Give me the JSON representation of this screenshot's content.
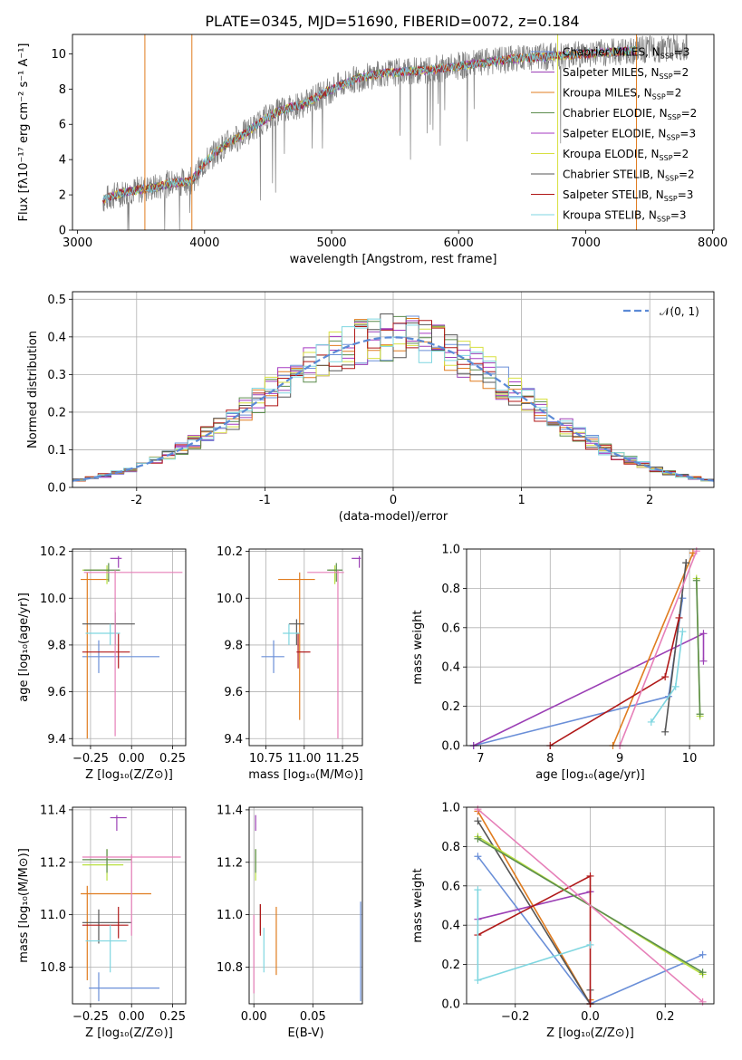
{
  "figure": {
    "title": "PLATE=0345, MJD=51690, FIBERID=0072, z=0.184",
    "colors": {
      "Chabrier MILES": "#6a8fd8",
      "Salpeter MILES": "#9b3fb5",
      "Kroupa MILES": "#e07c1f",
      "Chabrier ELODIE": "#5c8c4d",
      "Salpeter ELODIE": "#a63ac2",
      "Kroupa ELODIE": "#d8e040",
      "Chabrier STELIB": "#555555",
      "Salpeter STELIB": "#b01818",
      "Kroupa STELIB": "#7fd6e0",
      "data": "#7f7f7f",
      "pink": "#e67fb8",
      "lime": "#b8e040",
      "gaussian": "#5b8ad6"
    }
  },
  "chart_data": [
    {
      "id": "spectrum",
      "type": "line",
      "xlabel": "wavelength [Angstrom, rest frame]",
      "ylabel": "Flux [fλ10⁻¹⁷ erg cm⁻² s⁻¹ A⁻¹]",
      "xlim": [
        2960,
        8010
      ],
      "ylim": [
        0,
        11.1
      ],
      "xticks": [
        3000,
        4000,
        5000,
        6000,
        7000,
        8000
      ],
      "yticks": [
        0,
        2,
        4,
        6,
        8,
        10
      ],
      "grid": false,
      "legend_position": "right",
      "legend": [
        {
          "label": "Chabrier MILES",
          "nssp": "3",
          "color": "#6a8fd8"
        },
        {
          "label": "Salpeter MILES",
          "nssp": "2",
          "color": "#9b3fb5"
        },
        {
          "label": "Kroupa MILES",
          "nssp": "2",
          "color": "#e07c1f"
        },
        {
          "label": "Chabrier ELODIE",
          "nssp": "2",
          "color": "#5c8c4d"
        },
        {
          "label": "Salpeter ELODIE",
          "nssp": "3",
          "color": "#a63ac2"
        },
        {
          "label": "Kroupa ELODIE",
          "nssp": "2",
          "color": "#d8e040"
        },
        {
          "label": "Chabrier STELIB",
          "nssp": "2",
          "color": "#555555"
        },
        {
          "label": "Salpeter STELIB",
          "nssp": "3",
          "color": "#b01818"
        },
        {
          "label": "Kroupa STELIB",
          "nssp": "3",
          "color": "#7fd6e0"
        }
      ],
      "continuum": {
        "x": [
          3200,
          3300,
          3400,
          3500,
          3600,
          3700,
          3800,
          3900,
          4000,
          4100,
          4200,
          4300,
          4400,
          4500,
          4600,
          4700,
          4800,
          4900,
          5000,
          5200,
          5400,
          5600,
          5800,
          6000,
          6200,
          6400,
          6600,
          6800,
          7000,
          7200,
          7400,
          7600,
          7800
        ],
        "y": [
          1.7,
          2.0,
          2.2,
          2.3,
          2.4,
          2.6,
          2.7,
          2.8,
          3.8,
          4.5,
          5.0,
          5.4,
          5.9,
          6.4,
          6.8,
          7.0,
          7.2,
          7.6,
          8.0,
          8.6,
          8.9,
          9.0,
          9.1,
          9.3,
          9.5,
          9.7,
          9.8,
          9.9,
          10.0,
          10.1,
          10.2,
          10.3,
          10.4
        ]
      },
      "model_xmax": 7400,
      "flagged_lines": [
        {
          "x": 3530,
          "color": "#e07c1f"
        },
        {
          "x": 3900,
          "color": "#e07c1f"
        },
        {
          "x": 6780,
          "color": "#d8e040"
        },
        {
          "x": 7400,
          "color": "#e07c1f"
        }
      ]
    },
    {
      "id": "residuals",
      "type": "line",
      "xlabel": "(data-model)/error",
      "ylabel": "Normed distribution",
      "xlim": [
        -2.5,
        2.5
      ],
      "ylim": [
        0,
        0.52
      ],
      "xticks": [
        -2,
        -1,
        0,
        1,
        2
      ],
      "yticks": [
        0.0,
        0.1,
        0.2,
        0.3,
        0.4,
        0.5
      ],
      "grid": true,
      "legend_position": "top-right",
      "gaussian_label": "𝒩(0, 1)",
      "bin_width": 0.1
    },
    {
      "id": "age_vs_Z",
      "type": "scatter",
      "xlabel": "Z [log₁₀(Z/Z⊙)]",
      "ylabel": "age  [log₁₀(age/yr)]",
      "xlim": [
        -0.36,
        0.33
      ],
      "ylim": [
        9.37,
        10.21
      ],
      "xticks": [
        -0.25,
        0.0,
        0.25
      ],
      "xtick_labels": [
        "−0.25",
        "0.00",
        "0.25"
      ],
      "yticks": [
        9.4,
        9.6,
        9.8,
        10.0,
        10.2
      ],
      "ytick_labels": [
        "9.4",
        "9.6",
        "9.8",
        "10.0",
        "10.2"
      ],
      "grid": true,
      "points": [
        {
          "x": -0.2,
          "xerr": [
            0.1,
            0.37
          ],
          "y": 9.75,
          "yerr": [
            0.07,
            0.07
          ],
          "color": "#6a8fd8"
        },
        {
          "x": -0.27,
          "xerr": [
            0.04,
            0.13
          ],
          "y": 10.08,
          "yerr": [
            0.68,
            0.03
          ],
          "color": "#e07c1f"
        },
        {
          "x": -0.1,
          "xerr": [
            0.2,
            0.12
          ],
          "y": 9.89,
          "yerr": [
            0.09,
            0.05
          ],
          "color": "#555555"
        },
        {
          "x": -0.08,
          "xerr": [
            0.22,
            0.07
          ],
          "y": 9.77,
          "yerr": [
            0.07,
            0.08
          ],
          "color": "#b01818"
        },
        {
          "x": -0.13,
          "xerr": [
            0.15,
            0.06
          ],
          "y": 9.85,
          "yerr": [
            0.05,
            0.04
          ],
          "color": "#7fd6e0"
        },
        {
          "x": -0.15,
          "xerr": [
            0.15,
            0.01
          ],
          "y": 10.12,
          "yerr": [
            0.06,
            0.02
          ],
          "color": "#b8e040"
        },
        {
          "x": -0.14,
          "xerr": [
            0.15,
            0.07
          ],
          "y": 10.12,
          "yerr": [
            0.05,
            0.03
          ],
          "color": "#5c8c4d"
        },
        {
          "x": -0.08,
          "xerr": [
            0.05,
            0.02
          ],
          "y": 10.17,
          "yerr": [
            0.04,
            0.01
          ],
          "color": "#9b3fb5"
        },
        {
          "x": -0.1,
          "xerr": [
            0.19,
            0.41
          ],
          "y": 10.11,
          "yerr": [
            0.7,
            0.01
          ],
          "color": "#e67fb8"
        }
      ]
    },
    {
      "id": "age_vs_mass",
      "type": "scatter",
      "xlabel": "mass [log₁₀(M/M⊙)]",
      "ylabel": "",
      "xlim": [
        10.64,
        11.38
      ],
      "ylim": [
        9.37,
        10.21
      ],
      "xticks": [
        10.75,
        11.0,
        11.25
      ],
      "xtick_labels": [
        "10.75",
        "11.00",
        "11.25"
      ],
      "yticks": [
        9.4,
        9.6,
        9.8,
        10.0,
        10.2
      ],
      "ytick_labels": [
        "9.4",
        "9.6",
        "9.8",
        "10.0",
        "10.2"
      ],
      "grid": true,
      "points": [
        {
          "x": 10.8,
          "xerr": [
            0.08,
            0.07
          ],
          "y": 9.75,
          "yerr": [
            0.07,
            0.07
          ],
          "color": "#6a8fd8"
        },
        {
          "x": 10.97,
          "xerr": [
            0.14,
            0.1
          ],
          "y": 10.08,
          "yerr": [
            0.6,
            0.03
          ],
          "color": "#e07c1f"
        },
        {
          "x": 10.95,
          "xerr": [
            0.05,
            0.05
          ],
          "y": 9.89,
          "yerr": [
            0.09,
            0.02
          ],
          "color": "#555555"
        },
        {
          "x": 10.96,
          "xerr": [
            0.01,
            0.08
          ],
          "y": 9.77,
          "yerr": [
            0.07,
            0.08
          ],
          "color": "#b01818"
        },
        {
          "x": 10.9,
          "xerr": [
            0.04,
            0.07
          ],
          "y": 9.85,
          "yerr": [
            0.05,
            0.04
          ],
          "color": "#7fd6e0"
        },
        {
          "x": 11.2,
          "xerr": [
            0.04,
            0.01
          ],
          "y": 10.12,
          "yerr": [
            0.06,
            0.02
          ],
          "color": "#b8e040"
        },
        {
          "x": 11.21,
          "xerr": [
            0.06,
            0.04
          ],
          "y": 10.12,
          "yerr": [
            0.05,
            0.03
          ],
          "color": "#5c8c4d"
        },
        {
          "x": 11.36,
          "xerr": [
            0.05,
            0.01
          ],
          "y": 10.17,
          "yerr": [
            0.04,
            0.01
          ],
          "color": "#9b3fb5"
        },
        {
          "x": 11.22,
          "xerr": [
            0.2,
            0.04
          ],
          "y": 10.11,
          "yerr": [
            0.71,
            0.01
          ],
          "color": "#e67fb8"
        }
      ]
    },
    {
      "id": "mass_weight_vs_age",
      "type": "line",
      "xlabel": "age  [log₁₀(age/yr)]",
      "ylabel": "mass weight",
      "xlim": [
        6.8,
        10.35
      ],
      "ylim": [
        0,
        1
      ],
      "xticks": [
        7,
        8,
        9,
        10
      ],
      "yticks": [
        0.0,
        0.2,
        0.4,
        0.6,
        0.8,
        1.0
      ],
      "ytick_labels": [
        "0.0",
        "0.2",
        "0.4",
        "0.6",
        "0.8",
        "1.0"
      ],
      "grid": true,
      "series": [
        {
          "color": "#6a8fd8",
          "x": [
            6.9,
            9.7,
            9.9
          ],
          "y": [
            0.0,
            0.25,
            0.75
          ]
        },
        {
          "color": "#9b3fb5",
          "x": [
            6.9,
            10.2,
            10.2
          ],
          "y": [
            0.0,
            0.57,
            0.43
          ]
        },
        {
          "color": "#e07c1f",
          "x": [
            8.9,
            10.05,
            10.05
          ],
          "y": [
            0.0,
            0.98,
            0.98
          ]
        },
        {
          "color": "#555555",
          "x": [
            9.65,
            9.95,
            9.95
          ],
          "y": [
            0.07,
            0.93,
            0.93
          ]
        },
        {
          "color": "#b01818",
          "x": [
            8.0,
            9.65,
            9.85
          ],
          "y": [
            0.0,
            0.35,
            0.65
          ]
        },
        {
          "color": "#7fd6e0",
          "x": [
            9.45,
            9.8,
            9.9
          ],
          "y": [
            0.12,
            0.3,
            0.58
          ]
        },
        {
          "color": "#b8e040",
          "x": [
            10.1,
            10.15
          ],
          "y": [
            0.85,
            0.15
          ]
        },
        {
          "color": "#5c8c4d",
          "x": [
            10.1,
            10.15
          ],
          "y": [
            0.84,
            0.16
          ]
        },
        {
          "color": "#e67fb8",
          "x": [
            9.0,
            10.1
          ],
          "y": [
            0.0,
            0.99
          ]
        }
      ]
    },
    {
      "id": "mass_vs_Z",
      "type": "scatter",
      "xlabel": "Z [log₁₀(Z/Z⊙)]",
      "ylabel": "mass [log₁₀(M/M⊙)]",
      "xlim": [
        -0.36,
        0.33
      ],
      "ylim": [
        10.66,
        11.41
      ],
      "xticks": [
        -0.25,
        0.0,
        0.25
      ],
      "xtick_labels": [
        "−0.25",
        "0.00",
        "0.25"
      ],
      "yticks": [
        10.8,
        11.0,
        11.2,
        11.4
      ],
      "ytick_labels": [
        "10.8",
        "11.0",
        "11.2",
        "11.4"
      ],
      "grid": true,
      "points": [
        {
          "x": -0.2,
          "xerr": [
            0.06,
            0.37
          ],
          "y": 10.72,
          "yerr": [
            0.05,
            0.06
          ],
          "color": "#6a8fd8"
        },
        {
          "x": -0.27,
          "xerr": [
            0.04,
            0.39
          ],
          "y": 11.08,
          "yerr": [
            0.33,
            0.03
          ],
          "color": "#e07c1f"
        },
        {
          "x": -0.2,
          "xerr": [
            0.1,
            0.2
          ],
          "y": 10.97,
          "yerr": [
            0.08,
            0.05
          ],
          "color": "#555555"
        },
        {
          "x": -0.08,
          "xerr": [
            0.22,
            0.06
          ],
          "y": 10.96,
          "yerr": [
            0.05,
            0.07
          ],
          "color": "#b01818"
        },
        {
          "x": -0.13,
          "xerr": [
            0.15,
            0.1
          ],
          "y": 10.9,
          "yerr": [
            0.12,
            0.06
          ],
          "color": "#7fd6e0"
        },
        {
          "x": -0.15,
          "xerr": [
            0.15,
            0.1
          ],
          "y": 11.19,
          "yerr": [
            0.06,
            0.06
          ],
          "color": "#b8e040"
        },
        {
          "x": -0.15,
          "xerr": [
            0.15,
            0.15
          ],
          "y": 11.21,
          "yerr": [
            0.05,
            0.04
          ],
          "color": "#5c8c4d"
        },
        {
          "x": -0.09,
          "xerr": [
            0.04,
            0.06
          ],
          "y": 11.37,
          "yerr": [
            0.05,
            0.01
          ],
          "color": "#9b3fb5"
        },
        {
          "x": 0.0,
          "xerr": [
            0.3,
            0.3
          ],
          "y": 11.22,
          "yerr": [
            0.3,
            0.01
          ],
          "color": "#e67fb8"
        }
      ]
    },
    {
      "id": "mass_vs_ebv",
      "type": "scatter",
      "xlabel": "E(B-V)",
      "ylabel": "",
      "xlim": [
        -0.004,
        0.092
      ],
      "ylim": [
        10.66,
        11.41
      ],
      "xticks": [
        0.0,
        0.05
      ],
      "xtick_labels": [
        "0.00",
        "0.05"
      ],
      "yticks": [
        10.8,
        11.0,
        11.2,
        11.4
      ],
      "ytick_labels": [
        "10.8",
        "11.0",
        "11.2",
        "11.4"
      ],
      "grid": true,
      "points": [
        {
          "x": 0.0905,
          "y": 10.72,
          "yerr": [
            0.05,
            0.33
          ],
          "color": "#6a8fd8"
        },
        {
          "x": 0.019,
          "y": 10.9,
          "yerr": [
            0.13,
            0.13
          ],
          "color": "#e07c1f"
        },
        {
          "x": 0.0055,
          "y": 10.99,
          "yerr": [
            0.06,
            0.05
          ],
          "color": "#555555"
        },
        {
          "x": 0.0055,
          "y": 10.97,
          "yerr": [
            0.05,
            0.07
          ],
          "color": "#b01818"
        },
        {
          "x": 0.0085,
          "y": 10.9,
          "yerr": [
            0.12,
            0.05
          ],
          "color": "#7fd6e0"
        },
        {
          "x": 0.0015,
          "y": 11.19,
          "yerr": [
            0.06,
            0.06
          ],
          "color": "#b8e040"
        },
        {
          "x": 0.0015,
          "y": 11.21,
          "yerr": [
            0.05,
            0.04
          ],
          "color": "#5c8c4d"
        },
        {
          "x": 0.0015,
          "y": 11.37,
          "yerr": [
            0.05,
            0.01
          ],
          "color": "#9b3fb5"
        },
        {
          "x": 0.0,
          "y": 10.9,
          "yerr": [
            0.2,
            0.1
          ],
          "color": "#e67fb8"
        }
      ]
    },
    {
      "id": "mass_weight_vs_Z",
      "type": "line",
      "xlabel": "Z [log₁₀(Z/Z⊙)]",
      "ylabel": "mass weight",
      "xlim": [
        -0.33,
        0.33
      ],
      "ylim": [
        0,
        1
      ],
      "xticks": [
        -0.2,
        0.0,
        0.2
      ],
      "xtick_labels": [
        "−0.2",
        "0.0",
        "0.2"
      ],
      "yticks": [
        0.0,
        0.2,
        0.4,
        0.6,
        0.8,
        1.0
      ],
      "ytick_labels": [
        "0.0",
        "0.2",
        "0.4",
        "0.6",
        "0.8",
        "1.0"
      ],
      "grid": true,
      "series": [
        {
          "color": "#6a8fd8",
          "x": [
            -0.3,
            0.0,
            0.3
          ],
          "y": [
            0.75,
            0.0,
            0.25
          ]
        },
        {
          "color": "#9b3fb5",
          "x": [
            -0.3,
            0.0,
            0.0
          ],
          "y": [
            0.43,
            0.57,
            0.57
          ]
        },
        {
          "color": "#e07c1f",
          "x": [
            -0.3,
            0.0,
            0.0
          ],
          "y": [
            0.98,
            0.0,
            0.02
          ]
        },
        {
          "color": "#555555",
          "x": [
            -0.3,
            0.0,
            0.0
          ],
          "y": [
            0.93,
            0.0,
            0.07
          ]
        },
        {
          "color": "#b01818",
          "x": [
            -0.3,
            0.0,
            0.0
          ],
          "y": [
            0.35,
            0.65,
            0.0
          ]
        },
        {
          "color": "#7fd6e0",
          "x": [
            -0.3,
            -0.3,
            0.0
          ],
          "y": [
            0.58,
            0.12,
            0.3
          ]
        },
        {
          "color": "#b8e040",
          "x": [
            -0.3,
            0.3
          ],
          "y": [
            0.85,
            0.15
          ]
        },
        {
          "color": "#5c8c4d",
          "x": [
            -0.3,
            0.3
          ],
          "y": [
            0.84,
            0.16
          ]
        },
        {
          "color": "#e67fb8",
          "x": [
            -0.3,
            0.3
          ],
          "y": [
            0.99,
            0.01
          ]
        }
      ]
    }
  ]
}
